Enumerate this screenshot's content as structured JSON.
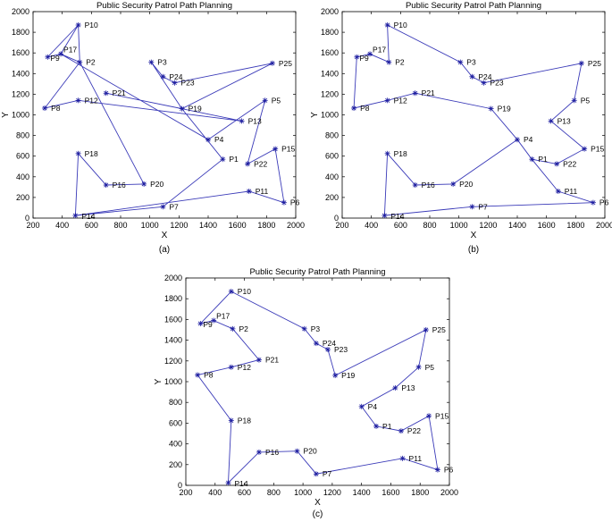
{
  "points": {
    "P1": [
      1500,
      570
    ],
    "P2": [
      520,
      1510
    ],
    "P3": [
      1010,
      1510
    ],
    "P4": [
      1400,
      760
    ],
    "P5": [
      1790,
      1140
    ],
    "P6": [
      1920,
      150
    ],
    "P7": [
      1090,
      110
    ],
    "P8": [
      280,
      1065
    ],
    "P9": [
      300,
      1560
    ],
    "P10": [
      510,
      1870
    ],
    "P11": [
      1680,
      260
    ],
    "P12": [
      510,
      1140
    ],
    "P13": [
      1630,
      940
    ],
    "P14": [
      490,
      25
    ],
    "P15": [
      1860,
      670
    ],
    "P16": [
      700,
      320
    ],
    "P17": [
      390,
      1590
    ],
    "P18": [
      510,
      625
    ],
    "P19": [
      1220,
      1060
    ],
    "P20": [
      960,
      330
    ],
    "P21": [
      700,
      1210
    ],
    "P22": [
      1670,
      525
    ],
    "P23": [
      1170,
      1310
    ],
    "P24": [
      1090,
      1370
    ],
    "P25": [
      1840,
      1500
    ]
  },
  "chart_data": [
    {
      "type": "line",
      "title": "Public Security Patrol Path Planning",
      "panel_label": "(a)",
      "xlabel": "X",
      "ylabel": "Y",
      "xlim": [
        200,
        2000
      ],
      "ylim": [
        0,
        2000
      ],
      "xticks": [
        200,
        400,
        600,
        800,
        1000,
        1200,
        1400,
        1600,
        1800,
        2000
      ],
      "yticks": [
        0,
        200,
        400,
        600,
        800,
        1000,
        1200,
        1400,
        1600,
        1800,
        2000
      ],
      "route": [
        "P10",
        "P9",
        "P17",
        "P2",
        "P20",
        "P16",
        "P18",
        "P14",
        "P7",
        "P1",
        "P19",
        "P3",
        "P24",
        "P23",
        "P25",
        "P19",
        "P21",
        "P13",
        "P12",
        "P8",
        "P2",
        "P10",
        "P17",
        "P4",
        "P5",
        "P22",
        "P15",
        "P6",
        "P11",
        "P14"
      ]
    },
    {
      "type": "line",
      "title": "Public Security Patrol Path Planning",
      "panel_label": "(b)",
      "xlabel": "X",
      "ylabel": "Y",
      "xlim": [
        200,
        2000
      ],
      "ylim": [
        0,
        2000
      ],
      "xticks": [
        200,
        400,
        600,
        800,
        1000,
        1200,
        1400,
        1600,
        1800,
        2000
      ],
      "yticks": [
        0,
        200,
        400,
        600,
        800,
        1000,
        1200,
        1400,
        1600,
        1800,
        2000
      ],
      "route": [
        "P10",
        "P2",
        "P10",
        "P3",
        "P24",
        "P23",
        "P25",
        "P5",
        "P13",
        "P15",
        "P22",
        "P1",
        "P4",
        "P20",
        "P16",
        "P18",
        "P14",
        "P7",
        "P6",
        "P11",
        "P1",
        "P4",
        "P19",
        "P21",
        "P12",
        "P8",
        "P9",
        "P17",
        "P2",
        "P10"
      ]
    },
    {
      "type": "line",
      "title": "Public Security Patrol Path Planning",
      "panel_label": "(c)",
      "xlabel": "X",
      "ylabel": "Y",
      "xlim": [
        200,
        2000
      ],
      "ylim": [
        0,
        2000
      ],
      "xticks": [
        200,
        400,
        600,
        800,
        1000,
        1200,
        1400,
        1600,
        1800,
        2000
      ],
      "yticks": [
        0,
        200,
        400,
        600,
        800,
        1000,
        1200,
        1400,
        1600,
        1800,
        2000
      ],
      "route": [
        "P10",
        "P9",
        "P17",
        "P2",
        "P21",
        "P12",
        "P8",
        "P18",
        "P14",
        "P16",
        "P20",
        "P7",
        "P11",
        "P6",
        "P15",
        "P22",
        "P1",
        "P4",
        "P13",
        "P5",
        "P25",
        "P19",
        "P23",
        "P24",
        "P3",
        "P10"
      ]
    }
  ],
  "colors": {
    "line": "#3a3ab8",
    "marker": "#1a1a9e",
    "axis": "#000000",
    "text": "#000000"
  }
}
